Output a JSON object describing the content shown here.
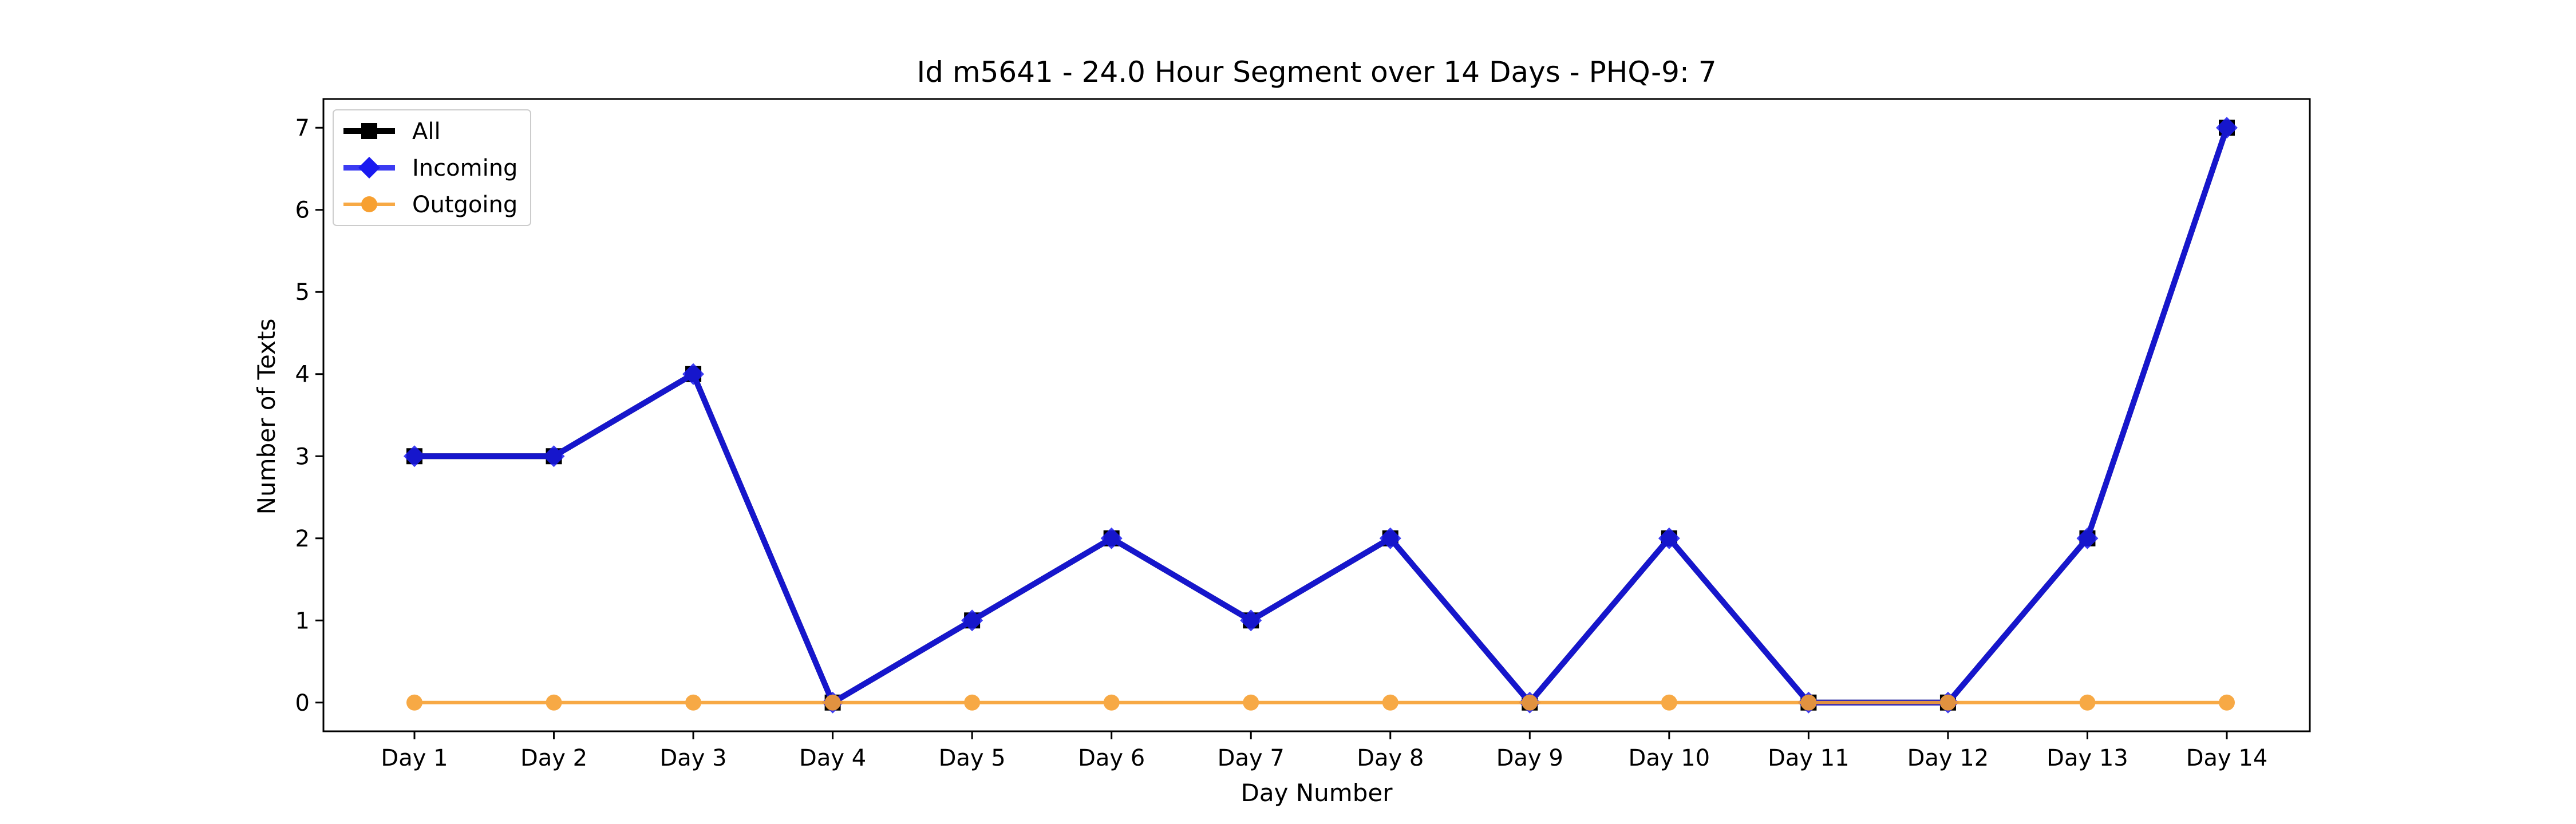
{
  "chart_data": {
    "type": "line",
    "title": "Id m5641 - 24.0 Hour Segment over 14 Days - PHQ-9: 7",
    "xlabel": "Day Number",
    "ylabel": "Number of Texts",
    "categories": [
      "Day 1",
      "Day 2",
      "Day 3",
      "Day 4",
      "Day 5",
      "Day 6",
      "Day 7",
      "Day 8",
      "Day 9",
      "Day 10",
      "Day 11",
      "Day 12",
      "Day 13",
      "Day 14"
    ],
    "ylim": [
      -0.35,
      7.35
    ],
    "yticks": [
      0,
      1,
      2,
      3,
      4,
      5,
      6,
      7
    ],
    "grid": false,
    "legend_position": "top-left",
    "series": [
      {
        "name": "All",
        "color": "#000000",
        "marker": "square",
        "values": [
          3,
          3,
          4,
          0,
          1,
          2,
          1,
          2,
          0,
          2,
          0,
          0,
          2,
          7
        ]
      },
      {
        "name": "Incoming",
        "color": "#1a1af0",
        "marker": "diamond",
        "values": [
          3,
          3,
          4,
          0,
          1,
          2,
          1,
          2,
          0,
          2,
          0,
          0,
          2,
          7
        ]
      },
      {
        "name": "Outgoing",
        "color": "#f7a031",
        "marker": "circle",
        "values": [
          0,
          0,
          0,
          0,
          0,
          0,
          0,
          0,
          0,
          0,
          0,
          0,
          0,
          0
        ]
      }
    ]
  }
}
